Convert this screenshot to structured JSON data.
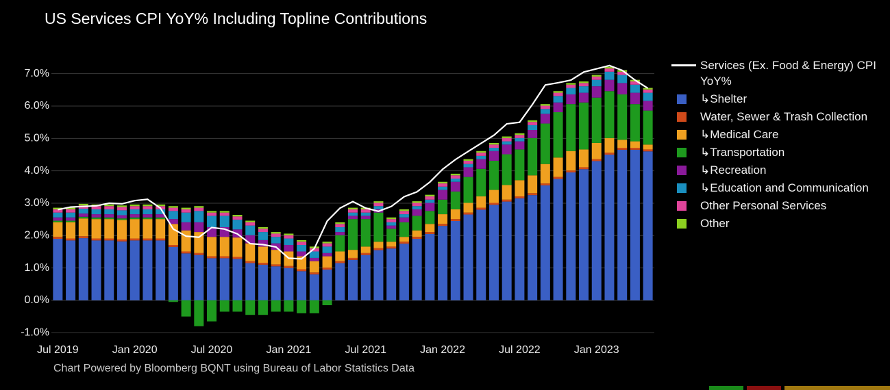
{
  "chart_data": {
    "type": "stacked_bar_line",
    "title": "US Services CPI YoY% Including Topline Contributions",
    "footnote": "Chart Powered by Bloomberg BQNT using Bureau of Labor Statistics Data",
    "categories": [
      "Jul 2019",
      null,
      null,
      null,
      null,
      null,
      "Jan 2020",
      null,
      null,
      null,
      null,
      null,
      "Jul 2020",
      null,
      null,
      null,
      null,
      null,
      "Jan 2021",
      null,
      null,
      null,
      null,
      null,
      "Jul 2021",
      null,
      null,
      null,
      null,
      null,
      "Jan 2022",
      null,
      null,
      null,
      null,
      null,
      "Jul 2022",
      null,
      null,
      null,
      null,
      null,
      "Jan 2023",
      null,
      null,
      null,
      null
    ],
    "ylim": [
      -1.1,
      7.5
    ],
    "yticks": [
      {
        "value": -1,
        "label": "-1.0%"
      },
      {
        "value": 0,
        "label": "0.0%"
      },
      {
        "value": 1,
        "label": "1.0%"
      },
      {
        "value": 2,
        "label": "2.0%"
      },
      {
        "value": 3,
        "label": "3.0%"
      },
      {
        "value": 4,
        "label": "4.0%"
      },
      {
        "value": 5,
        "label": "5.0%"
      },
      {
        "value": 6,
        "label": "6.0%"
      },
      {
        "value": 7,
        "label": "7.0%"
      }
    ],
    "grid": true,
    "legend": "right",
    "line": {
      "name": "Services (Ex. Food & Energy) CPI YoY%",
      "color": "#ffffff",
      "values": [
        2.8,
        2.88,
        2.9,
        2.92,
        3.0,
        2.98,
        3.08,
        3.12,
        2.85,
        2.2,
        1.98,
        1.95,
        2.25,
        2.2,
        2.05,
        1.75,
        1.72,
        1.65,
        1.3,
        1.28,
        1.6,
        2.45,
        2.85,
        3.05,
        2.85,
        2.75,
        2.9,
        3.2,
        3.35,
        3.65,
        4.05,
        4.35,
        4.6,
        4.85,
        5.1,
        5.45,
        5.5,
        6.05,
        6.65,
        6.72,
        6.8,
        7.05,
        7.15,
        7.25,
        7.1,
        6.8,
        6.55
      ]
    },
    "series": [
      {
        "name": "↳Shelter",
        "color": "#3a5fc4",
        "values": [
          1.9,
          1.85,
          1.92,
          1.85,
          1.85,
          1.82,
          1.85,
          1.85,
          1.85,
          1.65,
          1.45,
          1.4,
          1.3,
          1.3,
          1.28,
          1.15,
          1.1,
          1.05,
          1.0,
          0.9,
          0.8,
          0.95,
          1.15,
          1.25,
          1.4,
          1.55,
          1.6,
          1.75,
          1.9,
          2.05,
          2.3,
          2.45,
          2.65,
          2.8,
          2.95,
          3.05,
          3.15,
          3.25,
          3.55,
          3.75,
          3.95,
          4.05,
          4.3,
          4.5,
          4.65,
          4.65,
          4.6
        ]
      },
      {
        "name": "Water, Sewer & Trash Collection",
        "color": "#d04a1a",
        "values": [
          0.06,
          0.06,
          0.06,
          0.06,
          0.06,
          0.06,
          0.06,
          0.06,
          0.06,
          0.06,
          0.06,
          0.06,
          0.06,
          0.06,
          0.06,
          0.06,
          0.06,
          0.06,
          0.06,
          0.06,
          0.06,
          0.06,
          0.06,
          0.06,
          0.06,
          0.06,
          0.06,
          0.06,
          0.06,
          0.06,
          0.06,
          0.06,
          0.06,
          0.06,
          0.06,
          0.06,
          0.06,
          0.06,
          0.06,
          0.06,
          0.06,
          0.06,
          0.06,
          0.06,
          0.06,
          0.06,
          0.06
        ]
      },
      {
        "name": "↳Medical Care",
        "color": "#f0a020",
        "values": [
          0.45,
          0.5,
          0.55,
          0.6,
          0.6,
          0.6,
          0.6,
          0.6,
          0.6,
          0.65,
          0.65,
          0.65,
          0.6,
          0.6,
          0.6,
          0.55,
          0.5,
          0.45,
          0.45,
          0.4,
          0.35,
          0.35,
          0.3,
          0.25,
          0.2,
          0.2,
          0.15,
          0.15,
          0.2,
          0.25,
          0.3,
          0.3,
          0.3,
          0.35,
          0.4,
          0.45,
          0.5,
          0.55,
          0.6,
          0.6,
          0.6,
          0.55,
          0.5,
          0.45,
          0.25,
          0.2,
          0.15
        ]
      },
      {
        "name": "↳Transportation",
        "color": "#1e9a1e",
        "values": [
          0.05,
          0.05,
          0.05,
          0.05,
          0.05,
          0.05,
          0.05,
          0.05,
          0.05,
          -0.05,
          -0.5,
          -0.8,
          -0.65,
          -0.35,
          -0.35,
          -0.45,
          -0.45,
          -0.35,
          -0.35,
          -0.4,
          -0.4,
          -0.15,
          0.5,
          0.95,
          0.85,
          0.9,
          0.4,
          0.45,
          0.45,
          0.4,
          0.45,
          0.55,
          0.8,
          0.85,
          0.9,
          0.95,
          0.95,
          1.15,
          1.25,
          1.4,
          1.45,
          1.45,
          1.4,
          1.45,
          1.4,
          1.15,
          1.05
        ]
      },
      {
        "name": "↳Recreation",
        "color": "#8a1a9a",
        "values": [
          0.1,
          0.1,
          0.1,
          0.1,
          0.1,
          0.1,
          0.1,
          0.1,
          0.1,
          0.15,
          0.25,
          0.3,
          0.3,
          0.3,
          0.25,
          0.25,
          0.2,
          0.2,
          0.2,
          0.15,
          0.1,
          0.1,
          0.1,
          0.1,
          0.1,
          0.1,
          0.1,
          0.15,
          0.2,
          0.25,
          0.3,
          0.3,
          0.3,
          0.3,
          0.3,
          0.3,
          0.25,
          0.25,
          0.3,
          0.3,
          0.3,
          0.3,
          0.35,
          0.35,
          0.35,
          0.35,
          0.3
        ]
      },
      {
        "name": "↳Education and Communication",
        "color": "#1a8fbf",
        "values": [
          0.15,
          0.15,
          0.15,
          0.15,
          0.15,
          0.15,
          0.15,
          0.15,
          0.15,
          0.25,
          0.3,
          0.35,
          0.35,
          0.35,
          0.3,
          0.3,
          0.25,
          0.2,
          0.2,
          0.2,
          0.2,
          0.2,
          0.15,
          0.1,
          0.1,
          0.1,
          0.1,
          0.1,
          0.1,
          0.1,
          0.1,
          0.1,
          0.1,
          0.1,
          0.1,
          0.1,
          0.1,
          0.15,
          0.15,
          0.2,
          0.2,
          0.2,
          0.2,
          0.25,
          0.25,
          0.25,
          0.25
        ]
      },
      {
        "name": "Other Personal Services",
        "color": "#e0449a",
        "values": [
          0.1,
          0.1,
          0.1,
          0.1,
          0.1,
          0.1,
          0.1,
          0.1,
          0.1,
          0.1,
          0.1,
          0.1,
          0.1,
          0.1,
          0.1,
          0.1,
          0.1,
          0.1,
          0.1,
          0.1,
          0.1,
          0.1,
          0.1,
          0.1,
          0.1,
          0.1,
          0.1,
          0.1,
          0.1,
          0.1,
          0.1,
          0.1,
          0.1,
          0.1,
          0.1,
          0.1,
          0.1,
          0.1,
          0.1,
          0.1,
          0.1,
          0.1,
          0.1,
          0.1,
          0.1,
          0.1,
          0.1
        ]
      },
      {
        "name": "Other",
        "color": "#8cd020",
        "values": [
          0.05,
          0.05,
          0.05,
          0.05,
          0.05,
          0.05,
          0.05,
          0.05,
          0.05,
          0.05,
          0.05,
          0.05,
          0.05,
          0.05,
          0.05,
          0.05,
          0.05,
          0.05,
          0.05,
          0.05,
          0.05,
          0.05,
          0.05,
          0.05,
          0.05,
          0.05,
          0.05,
          0.05,
          0.05,
          0.05,
          0.05,
          0.05,
          0.05,
          0.05,
          0.05,
          0.05,
          0.05,
          0.05,
          0.05,
          0.05,
          0.05,
          0.05,
          0.05,
          0.05,
          0.05,
          0.05,
          0.05
        ]
      }
    ]
  }
}
